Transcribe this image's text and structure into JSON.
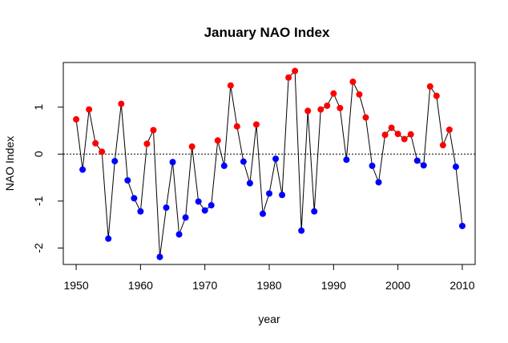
{
  "chart_data": {
    "type": "line",
    "title": "January NAO Index",
    "xlabel": "year",
    "ylabel": "NAO Index",
    "xlim": [
      1948,
      2012
    ],
    "ylim": [
      -2.35,
      1.95
    ],
    "x_ticks": [
      1950,
      1960,
      1970,
      1980,
      1990,
      2000,
      2010
    ],
    "x_tick_labels": [
      "1950",
      "1960",
      "1970",
      "1980",
      "1990",
      "2000",
      "2010"
    ],
    "y_ticks": [
      -2,
      -1,
      0,
      1
    ],
    "y_tick_labels": [
      "-2",
      "-1",
      "0",
      "1"
    ],
    "reference_line": 0,
    "positive_color": "#ff0000",
    "negative_color": "#0000ff",
    "line_color": "#000000",
    "series": [
      {
        "x": [
          1950,
          1951,
          1952,
          1953,
          1954,
          1955,
          1956,
          1957,
          1958,
          1959,
          1960,
          1961,
          1962,
          1963,
          1964,
          1965,
          1966,
          1967,
          1968,
          1969,
          1970,
          1971,
          1972,
          1973,
          1974,
          1975,
          1976,
          1977,
          1978,
          1979,
          1980,
          1981,
          1982,
          1983,
          1984,
          1985,
          1986,
          1987,
          1988,
          1989,
          1990,
          1991,
          1992,
          1993,
          1994,
          1995,
          1996,
          1997,
          1998,
          1999,
          2000,
          2001,
          2002,
          2003,
          2004,
          2005,
          2006,
          2007,
          2008,
          2009,
          2010
        ],
        "values": [
          0.74,
          -0.33,
          0.95,
          0.23,
          0.05,
          -1.8,
          -0.15,
          1.07,
          -0.56,
          -0.94,
          -1.22,
          0.22,
          0.51,
          -2.19,
          -1.14,
          -0.17,
          -1.71,
          -1.35,
          0.16,
          -1.01,
          -1.2,
          -1.09,
          0.29,
          -0.25,
          1.46,
          0.59,
          -0.16,
          -0.62,
          0.63,
          -1.27,
          -0.84,
          -0.1,
          -0.87,
          1.63,
          1.77,
          -1.63,
          0.92,
          -1.22,
          0.95,
          1.03,
          1.29,
          0.98,
          -0.12,
          1.54,
          1.27,
          0.78,
          -0.25,
          -0.6,
          0.41,
          0.56,
          0.43,
          0.32,
          0.42,
          -0.14,
          -0.24,
          1.44,
          1.24,
          0.19,
          0.52,
          -0.27,
          -1.53
        ]
      }
    ]
  }
}
